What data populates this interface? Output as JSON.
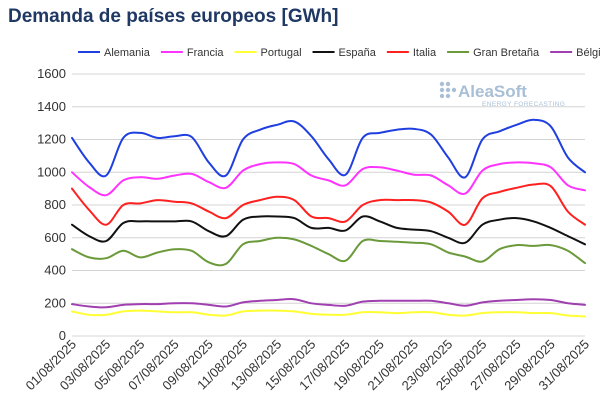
{
  "title": "Demanda de países europeos [GWh]",
  "watermark": {
    "brand": "AleaSoft",
    "tagline": "ENERGY FORECASTING"
  },
  "chart_data": {
    "type": "line",
    "title": "Demanda de países europeos [GWh]",
    "ylim": [
      0,
      1600
    ],
    "yticks": [
      0,
      200,
      400,
      600,
      800,
      1000,
      1200,
      1400,
      1600
    ],
    "grid": true,
    "legend_position": "top",
    "x": [
      "01/08/2025",
      "02/08/2025",
      "03/08/2025",
      "04/08/2025",
      "05/08/2025",
      "06/08/2025",
      "07/08/2025",
      "08/08/2025",
      "09/08/2025",
      "10/08/2025",
      "11/08/2025",
      "12/08/2025",
      "13/08/2025",
      "14/08/2025",
      "15/08/2025",
      "16/08/2025",
      "17/08/2025",
      "18/08/2025",
      "19/08/2025",
      "20/08/2025",
      "21/08/2025",
      "22/08/2025",
      "23/08/2025",
      "24/08/2025",
      "25/08/2025",
      "26/08/2025",
      "27/08/2025",
      "28/08/2025",
      "29/08/2025",
      "30/08/2025",
      "31/08/2025"
    ],
    "xtick_labels": [
      "01/08/2025",
      "03/08/2025",
      "05/08/2025",
      "07/08/2025",
      "09/08/2025",
      "11/08/2025",
      "13/08/2025",
      "15/08/2025",
      "17/08/2025",
      "19/08/2025",
      "21/08/2025",
      "23/08/2025",
      "25/08/2025",
      "27/08/2025",
      "29/08/2025",
      "31/08/2025"
    ],
    "series": [
      {
        "name": "Alemania",
        "color": "#1f3fe0",
        "values": [
          1210,
          1060,
          980,
          1210,
          1240,
          1210,
          1220,
          1215,
          1060,
          980,
          1200,
          1260,
          1290,
          1310,
          1220,
          1080,
          985,
          1210,
          1240,
          1260,
          1265,
          1230,
          1090,
          970,
          1200,
          1250,
          1290,
          1320,
          1280,
          1090,
          1000
        ]
      },
      {
        "name": "Francia",
        "color": "#ff33ff",
        "values": [
          1000,
          910,
          860,
          950,
          970,
          960,
          980,
          990,
          940,
          905,
          1010,
          1050,
          1060,
          1050,
          980,
          950,
          920,
          1020,
          1030,
          1010,
          985,
          980,
          920,
          870,
          1010,
          1050,
          1060,
          1055,
          1030,
          920,
          890
        ]
      },
      {
        "name": "Portugal",
        "color": "#ffff33",
        "values": [
          150,
          130,
          130,
          150,
          155,
          150,
          145,
          145,
          130,
          125,
          150,
          155,
          155,
          150,
          135,
          130,
          130,
          145,
          145,
          140,
          145,
          145,
          130,
          125,
          140,
          145,
          145,
          140,
          140,
          125,
          120
        ]
      },
      {
        "name": "España",
        "color": "#111111",
        "values": [
          680,
          610,
          580,
          690,
          700,
          700,
          700,
          700,
          640,
          610,
          710,
          730,
          730,
          720,
          660,
          660,
          645,
          730,
          700,
          660,
          650,
          640,
          600,
          570,
          680,
          710,
          720,
          700,
          660,
          610,
          560
        ]
      },
      {
        "name": "Italia",
        "color": "#ff2020",
        "values": [
          900,
          770,
          680,
          800,
          810,
          830,
          820,
          810,
          760,
          720,
          800,
          830,
          850,
          830,
          730,
          720,
          700,
          800,
          830,
          830,
          830,
          815,
          760,
          680,
          840,
          880,
          905,
          925,
          915,
          760,
          680
        ]
      },
      {
        "name": "Gran Bretaña",
        "color": "#6a9a3a",
        "values": [
          530,
          480,
          475,
          520,
          480,
          510,
          530,
          520,
          450,
          440,
          560,
          580,
          600,
          590,
          550,
          500,
          460,
          580,
          580,
          575,
          570,
          560,
          510,
          485,
          455,
          530,
          555,
          550,
          555,
          520,
          445
        ]
      },
      {
        "name": "Bélgica",
        "color": "#a040b0",
        "values": [
          195,
          180,
          175,
          190,
          195,
          195,
          200,
          200,
          190,
          180,
          205,
          215,
          220,
          225,
          200,
          190,
          185,
          210,
          215,
          215,
          215,
          215,
          200,
          185,
          205,
          215,
          220,
          225,
          220,
          200,
          190
        ]
      }
    ]
  }
}
